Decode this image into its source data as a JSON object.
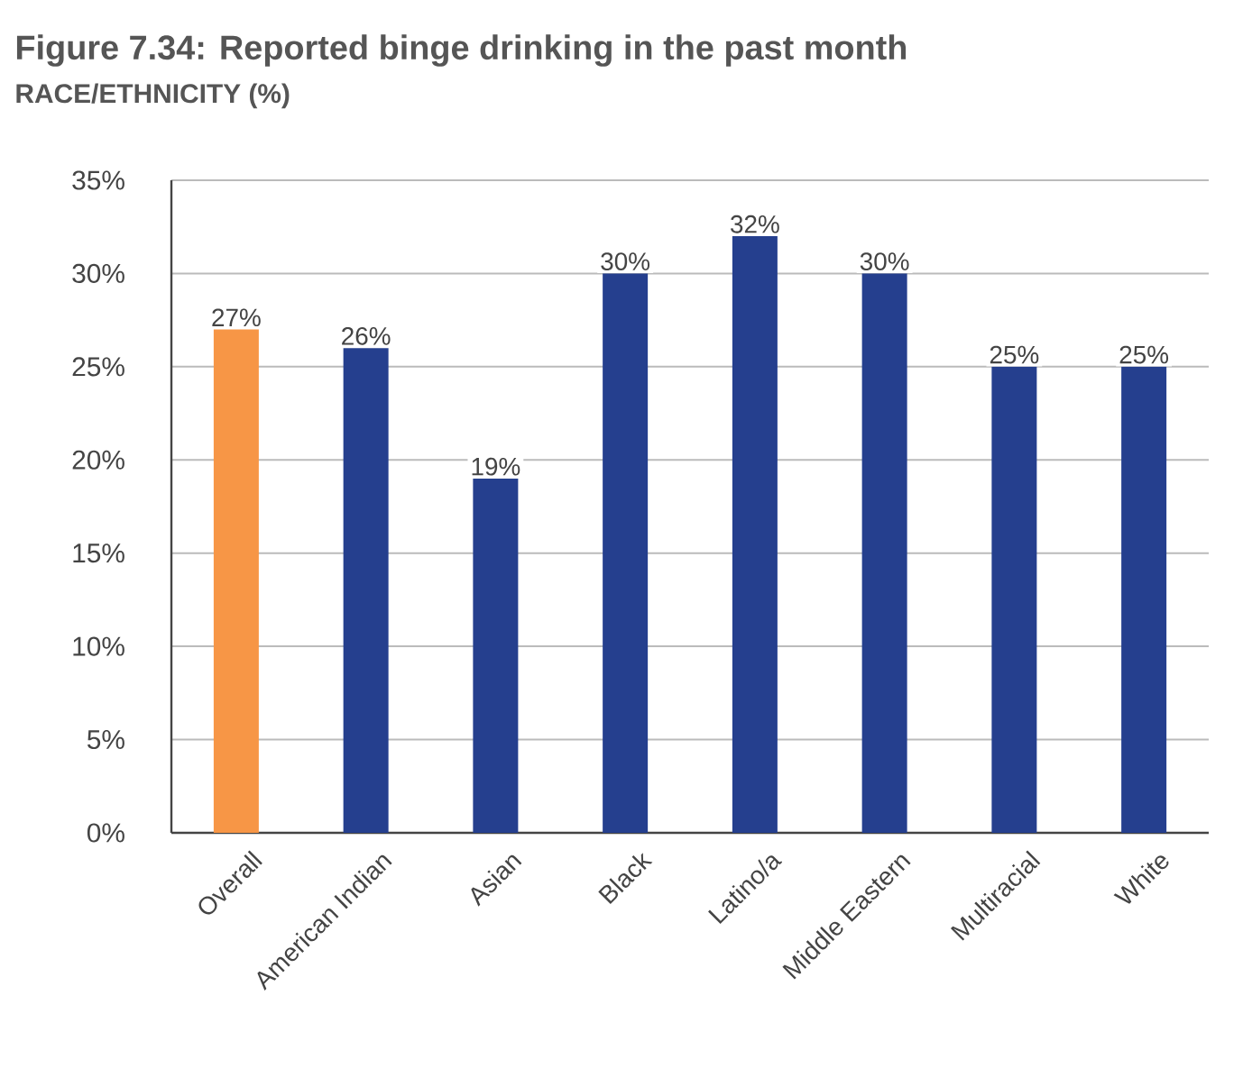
{
  "chart_data": {
    "type": "bar",
    "title": "Figure 7.34: Reported binge drinking in the past month",
    "subtitle": "RACE/ETHNICITY (%)",
    "categories": [
      "Overall",
      "American Indian",
      "Asian",
      "Black",
      "Latino/a",
      "Middle Eastern",
      "Multiracial",
      "White"
    ],
    "values": [
      27,
      26,
      19,
      30,
      32,
      30,
      25,
      25
    ],
    "colors": [
      "#f79646",
      "#253f8e",
      "#253f8e",
      "#253f8e",
      "#253f8e",
      "#253f8e",
      "#253f8e",
      "#253f8e"
    ],
    "value_labels": [
      "27%",
      "26%",
      "19%",
      "30%",
      "32%",
      "30%",
      "25%",
      "25%"
    ],
    "ylim": [
      0,
      35
    ],
    "yticks": [
      {
        "value": 0,
        "label": "0%"
      },
      {
        "value": 5,
        "label": "5%"
      },
      {
        "value": 10,
        "label": "10%"
      },
      {
        "value": 15,
        "label": "15%"
      },
      {
        "value": 20,
        "label": "20%"
      },
      {
        "value": 25,
        "label": "25%"
      },
      {
        "value": 30,
        "label": "30%"
      },
      {
        "value": 35,
        "label": "35%"
      }
    ],
    "grid": "y"
  }
}
